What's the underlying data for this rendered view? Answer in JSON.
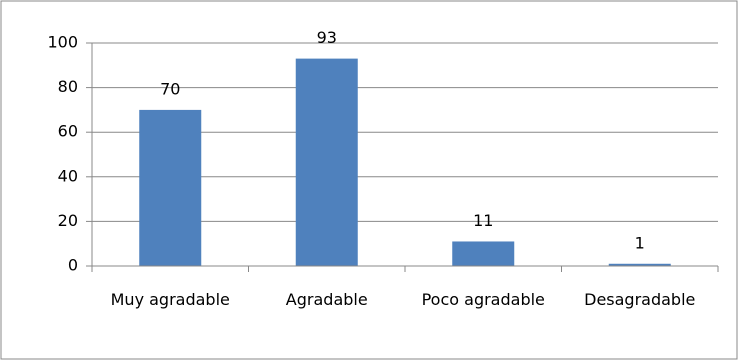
{
  "chart_data": {
    "type": "bar",
    "categories": [
      "Muy agradable",
      "Agradable",
      "Poco agradable",
      "Desagradable"
    ],
    "values": [
      70,
      93,
      11,
      1
    ],
    "color": "#4f81bd",
    "ylim": [
      0,
      100
    ],
    "yticks": [
      0,
      20,
      40,
      60,
      80,
      100
    ],
    "grid": true
  }
}
